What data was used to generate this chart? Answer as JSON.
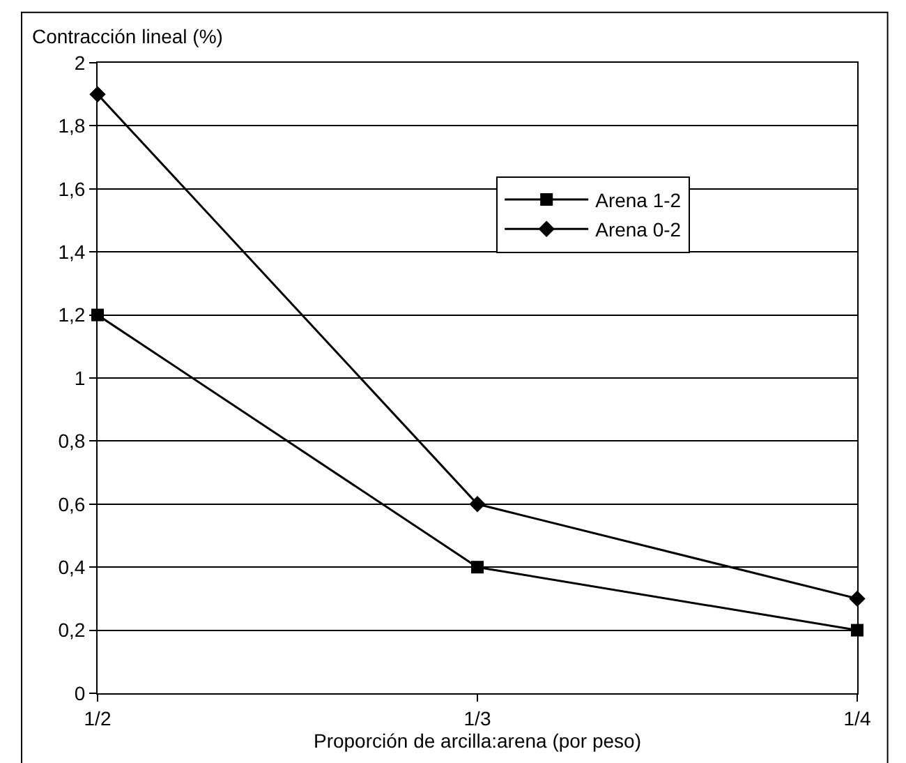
{
  "chart_data": {
    "type": "line",
    "ylabel": "Contracción lineal (%)",
    "xlabel": "Proporción de arcilla:arena (por peso)",
    "categories": [
      "1/2",
      "1/3",
      "1/4"
    ],
    "series": [
      {
        "name": "Arena 1-2",
        "color": "#000000",
        "marker": "square",
        "values": [
          1.2,
          0.4,
          0.2
        ]
      },
      {
        "name": "Arena 0-2",
        "color": "#000000",
        "marker": "diamond",
        "values": [
          1.9,
          0.6,
          0.3
        ]
      }
    ],
    "ylim": [
      0,
      2
    ],
    "yticks": [
      0,
      {
        "value": 0.2,
        "label": "0,2"
      },
      {
        "value": 0.4,
        "label": "0,4"
      },
      {
        "value": 0.6,
        "label": "0,6"
      },
      {
        "value": 0.8,
        "label": "0,8"
      },
      1,
      {
        "value": 1.2,
        "label": "1,2"
      },
      {
        "value": 1.4,
        "label": "1,4"
      },
      {
        "value": 1.6,
        "label": "1,6"
      },
      {
        "value": 1.8,
        "label": "1,8"
      },
      2
    ],
    "grid": "y",
    "legend": "top right",
    "line_style": "solid"
  }
}
